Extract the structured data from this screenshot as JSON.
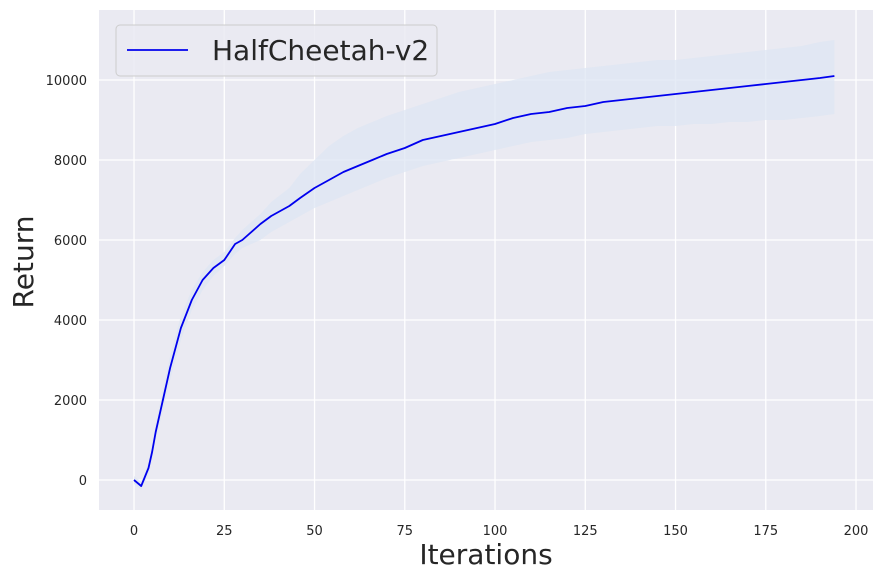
{
  "chart_data": {
    "type": "line",
    "title": "",
    "xlabel": "Iterations",
    "ylabel": "Return",
    "xlim": [
      -9.7,
      204.7
    ],
    "ylim": [
      -750,
      11750
    ],
    "xticks": [
      0,
      25,
      50,
      75,
      100,
      125,
      150,
      175,
      200
    ],
    "xtick_labels": [
      "0",
      "25",
      "50",
      "75",
      "100",
      "125",
      "150",
      "175",
      "200"
    ],
    "yticks": [
      0,
      2000,
      4000,
      6000,
      8000,
      10000
    ],
    "ytick_labels": [
      "0",
      "2000",
      "4000",
      "6000",
      "8000",
      "10000"
    ],
    "grid": true,
    "legend_position": "top-left",
    "colors": {
      "background": "#eaeaf2",
      "grid": "#ffffff",
      "line": "#0000ee",
      "band": "#dde6f3"
    },
    "series": [
      {
        "name": "HalfCheetah-v2",
        "x": [
          0,
          2,
          4,
          5,
          6,
          8,
          10,
          13,
          16,
          19,
          22,
          25,
          28,
          30,
          35,
          38,
          43,
          46,
          50,
          54,
          58,
          62,
          66,
          70,
          75,
          80,
          85,
          90,
          95,
          100,
          105,
          110,
          115,
          120,
          125,
          130,
          135,
          140,
          145,
          150,
          155,
          160,
          165,
          170,
          175,
          180,
          185,
          190,
          194
        ],
        "y": [
          0,
          -150,
          300,
          700,
          1200,
          2000,
          2800,
          3800,
          4500,
          5000,
          5300,
          5500,
          5900,
          6000,
          6400,
          6600,
          6850,
          7050,
          7300,
          7500,
          7700,
          7850,
          8000,
          8150,
          8300,
          8500,
          8600,
          8700,
          8800,
          8900,
          9050,
          9150,
          9200,
          9300,
          9350,
          9450,
          9500,
          9550,
          9600,
          9650,
          9700,
          9750,
          9800,
          9850,
          9900,
          9950,
          10000,
          10050,
          10100
        ],
        "lower": [
          -100,
          -250,
          150,
          500,
          1000,
          1750,
          2500,
          3500,
          4250,
          4750,
          5100,
          5350,
          5650,
          5800,
          6000,
          6200,
          6450,
          6600,
          6800,
          6950,
          7100,
          7250,
          7400,
          7550,
          7700,
          7850,
          7950,
          8050,
          8150,
          8250,
          8350,
          8450,
          8500,
          8550,
          8650,
          8700,
          8750,
          8800,
          8850,
          8850,
          8900,
          8900,
          8950,
          8950,
          9000,
          9000,
          9050,
          9100,
          9150
        ],
        "upper": [
          100,
          -50,
          450,
          900,
          1400,
          2250,
          3100,
          4100,
          4750,
          5200,
          5500,
          5700,
          6050,
          6250,
          6650,
          6950,
          7300,
          7650,
          8000,
          8350,
          8600,
          8800,
          8950,
          9100,
          9250,
          9400,
          9550,
          9700,
          9800,
          9900,
          10000,
          10100,
          10200,
          10250,
          10300,
          10350,
          10400,
          10450,
          10500,
          10500,
          10550,
          10600,
          10650,
          10700,
          10750,
          10800,
          10850,
          10950,
          11000
        ]
      }
    ]
  }
}
